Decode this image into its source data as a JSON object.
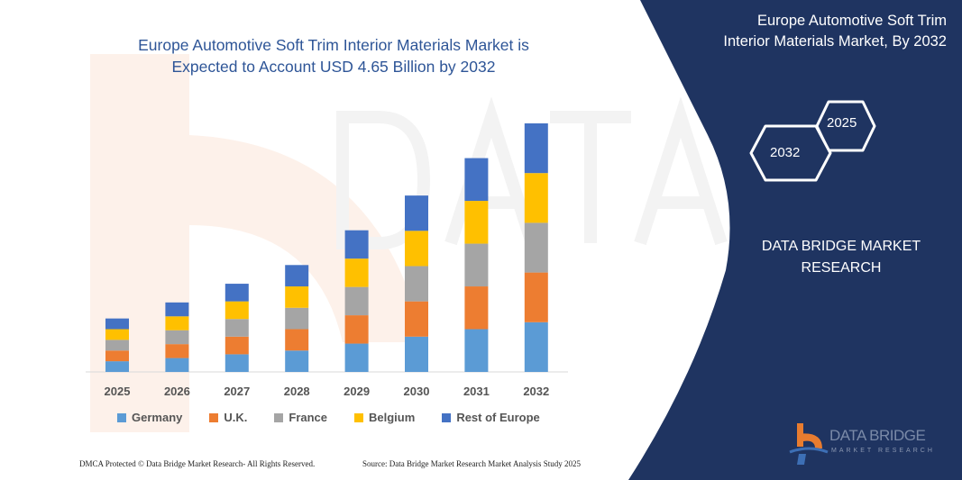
{
  "header": {
    "title_line1": "Europe Automotive Soft Trim Interior Materials Market is",
    "title_line2": "Expected to Account USD 4.65 Billion by 2032"
  },
  "side_panel": {
    "title_line1": "Europe Automotive Soft Trim",
    "title_line2": "Interior Materials Market, By 2032",
    "hex_years": [
      "2025",
      "2032"
    ],
    "brand_line1": "DATA BRIDGE MARKET",
    "brand_line2": "RESEARCH",
    "logo_text": "DATA BRIDGE",
    "logo_subtext": "MARKET RESEARCH",
    "panel_color": "#1f3461"
  },
  "footer": {
    "left": "DMCA Protected © Data Bridge Market Research- All Rights Reserved.",
    "right": "Source: Data Bridge Market Research  Market Analysis Study 2025"
  },
  "chart_data": {
    "type": "bar",
    "stacked": true,
    "title": "Europe Automotive Soft Trim Interior Materials Market is Expected to Account USD 4.65 Billion by 2032",
    "categories": [
      "2025",
      "2026",
      "2027",
      "2028",
      "2029",
      "2030",
      "2031",
      "2032"
    ],
    "series": [
      {
        "name": "Germany",
        "color": "#5b9bd5",
        "values": [
          0.2,
          0.26,
          0.33,
          0.4,
          0.53,
          0.66,
          0.8,
          0.93
        ]
      },
      {
        "name": "U.K.",
        "color": "#ed7d31",
        "values": [
          0.2,
          0.26,
          0.33,
          0.4,
          0.53,
          0.66,
          0.8,
          0.93
        ]
      },
      {
        "name": "France",
        "color": "#a5a5a5",
        "values": [
          0.2,
          0.26,
          0.33,
          0.4,
          0.53,
          0.66,
          0.8,
          0.93
        ]
      },
      {
        "name": "Belgium",
        "color": "#ffc000",
        "values": [
          0.2,
          0.26,
          0.33,
          0.4,
          0.53,
          0.66,
          0.8,
          0.93
        ]
      },
      {
        "name": "Rest of Europe",
        "color": "#4472c4",
        "values": [
          0.2,
          0.26,
          0.33,
          0.4,
          0.53,
          0.66,
          0.8,
          0.93
        ]
      }
    ],
    "ylim": [
      0,
      4.65
    ],
    "grid": false,
    "y_axis_shown": false,
    "legend_position": "bottom"
  }
}
